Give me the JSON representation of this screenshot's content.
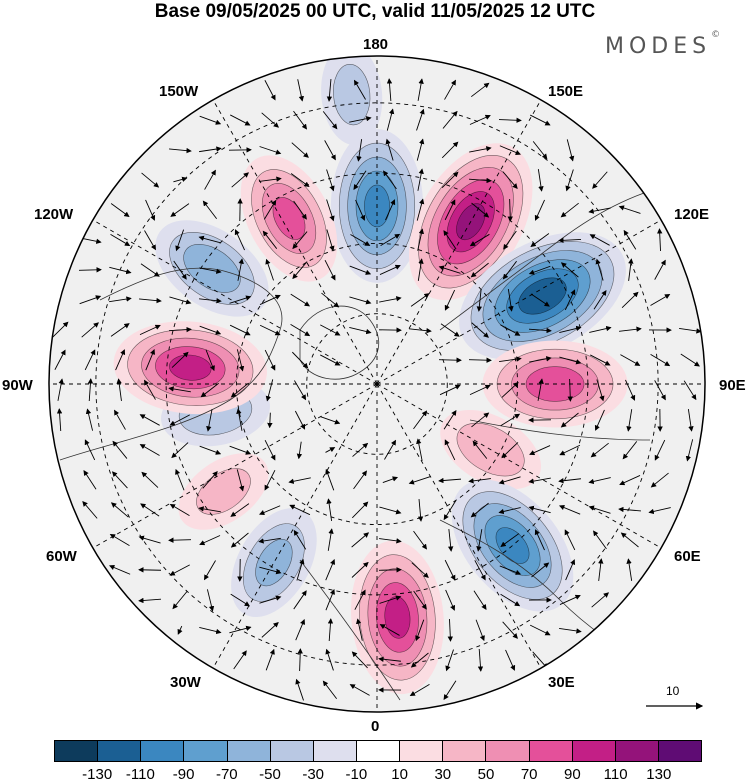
{
  "title": "Base 09/05/2025 00 UTC, valid 11/05/2025 12 UTC",
  "brand": {
    "name": "MODES",
    "mark": "©"
  },
  "longitude_labels": [
    {
      "text": "180"
    },
    {
      "text": "150E"
    },
    {
      "text": "120E"
    },
    {
      "text": "90E"
    },
    {
      "text": "60E"
    },
    {
      "text": "30E"
    },
    {
      "text": "0"
    },
    {
      "text": "30W"
    },
    {
      "text": "60W"
    },
    {
      "text": "90W"
    },
    {
      "text": "120W"
    },
    {
      "text": "150W"
    }
  ],
  "colorbar": {
    "colors": [
      "#0d3b5c",
      "#1b5f93",
      "#3b87c0",
      "#5f9fcf",
      "#8fb4da",
      "#b9c8e3",
      "#dedfee",
      "#ffffff",
      "#fbdde2",
      "#f6b6c6",
      "#ef8fb3",
      "#e4509a",
      "#c31f86",
      "#94137a",
      "#5f0c74"
    ],
    "tick_labels": [
      "-130",
      "-110",
      "-90",
      "-70",
      "-50",
      "-30",
      "-10",
      "10",
      "30",
      "50",
      "70",
      "90",
      "110",
      "130"
    ]
  },
  "reference_vector": {
    "label": "10"
  },
  "map": {
    "projection": "north-polar-stereographic",
    "anomalies": [
      {
        "lon": 180,
        "lat": 52,
        "value": -90
      },
      {
        "lon": 150,
        "lat": 50,
        "value": 110
      },
      {
        "lon": 118,
        "lat": 50,
        "value": -120
      },
      {
        "lon": 90,
        "lat": 52,
        "value": 80
      },
      {
        "lon": 60,
        "lat": 62,
        "value": 40
      },
      {
        "lon": 40,
        "lat": 45,
        "value": -90
      },
      {
        "lon": 5,
        "lat": 40,
        "value": 90
      },
      {
        "lon": -30,
        "lat": 46,
        "value": -50
      },
      {
        "lon": -55,
        "lat": 50,
        "value": 30
      },
      {
        "lon": -80,
        "lat": 55,
        "value": -40
      },
      {
        "lon": -95,
        "lat": 50,
        "value": 90
      },
      {
        "lon": -125,
        "lat": 47,
        "value": -60
      },
      {
        "lon": -152,
        "lat": 50,
        "value": 70
      },
      {
        "lon": -175,
        "lat": 28,
        "value": -30
      }
    ]
  }
}
